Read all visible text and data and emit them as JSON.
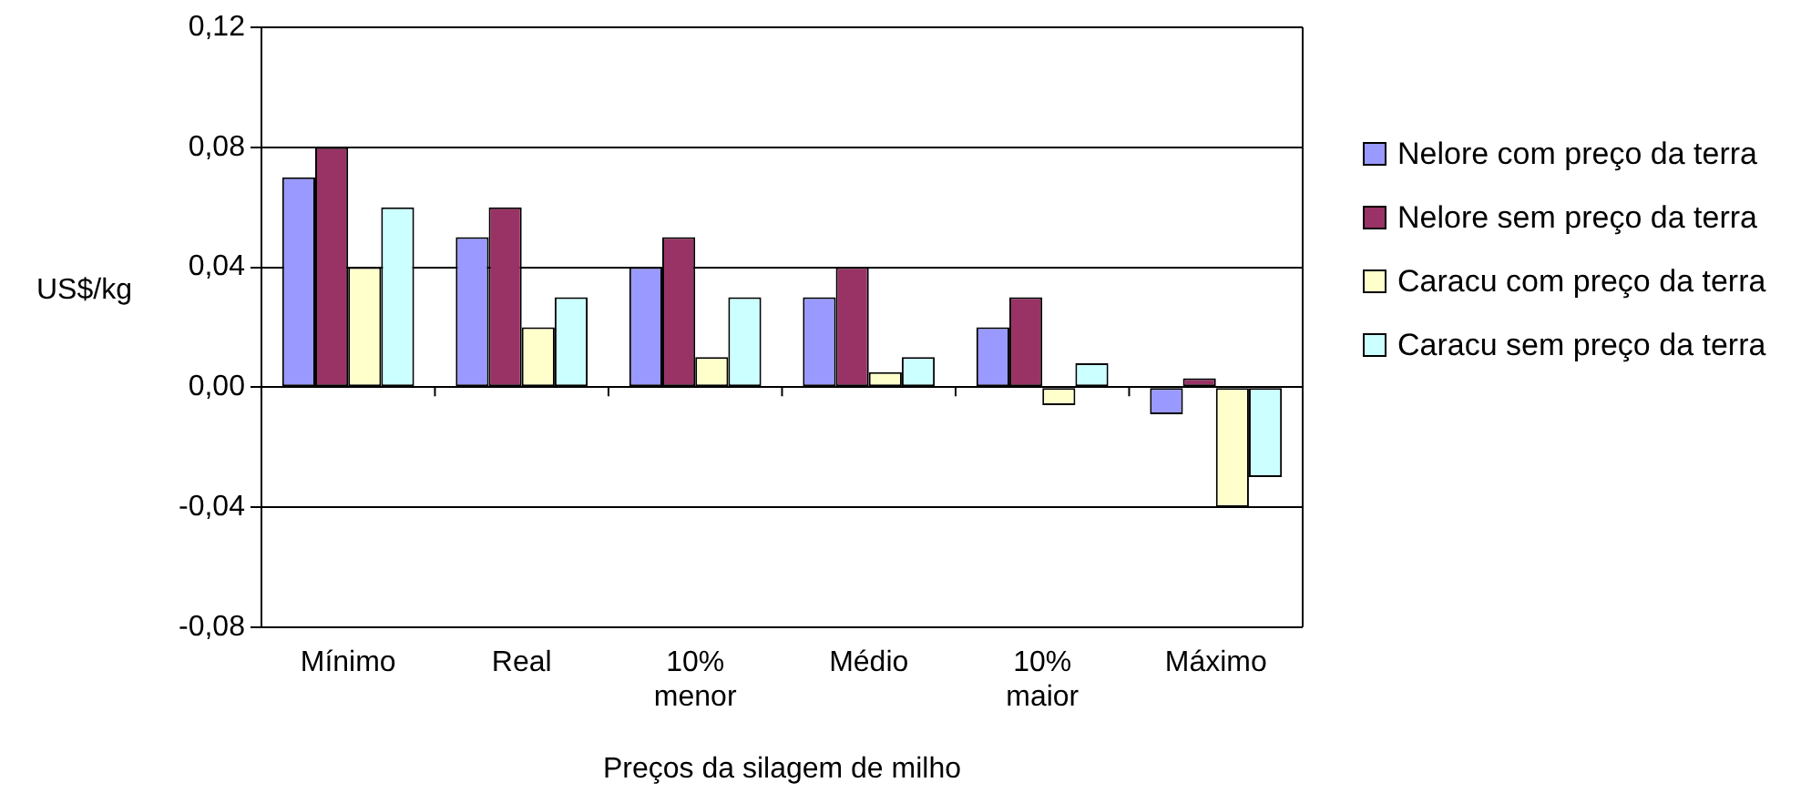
{
  "chart_data": {
    "type": "bar",
    "xlabel": "Preços da silagem de milho",
    "ylabel": "US$/kg",
    "categories": [
      "Mínimo",
      "Real",
      "10% menor",
      "Médio",
      "10% maior",
      "Máximo"
    ],
    "series": [
      {
        "name": "Nelore com preço da terra",
        "color": "#9999ff",
        "values": [
          0.07,
          0.05,
          0.04,
          0.03,
          0.02,
          -0.009
        ]
      },
      {
        "name": "Nelore sem preço da terra",
        "color": "#993366",
        "values": [
          0.08,
          0.06,
          0.05,
          0.04,
          0.03,
          0.003
        ]
      },
      {
        "name": "Caracu com preço da terra",
        "color": "#ffffcc",
        "values": [
          0.04,
          0.02,
          0.01,
          0.005,
          -0.006,
          -0.04
        ]
      },
      {
        "name": "Caracu sem preço da terra",
        "color": "#ccffff",
        "values": [
          0.06,
          0.03,
          0.03,
          0.01,
          0.008,
          -0.03
        ]
      }
    ],
    "ylim": [
      -0.08,
      0.12
    ],
    "yticks": [
      {
        "value": -0.08,
        "label": "-0,08"
      },
      {
        "value": -0.04,
        "label": "-0,04"
      },
      {
        "value": 0,
        "label": "0,00"
      },
      {
        "value": 0.04,
        "label": "0,04"
      },
      {
        "value": 0.08,
        "label": "0,08"
      },
      {
        "value": 0.12,
        "label": "0,12"
      }
    ],
    "grid": "y",
    "legend": "right"
  }
}
